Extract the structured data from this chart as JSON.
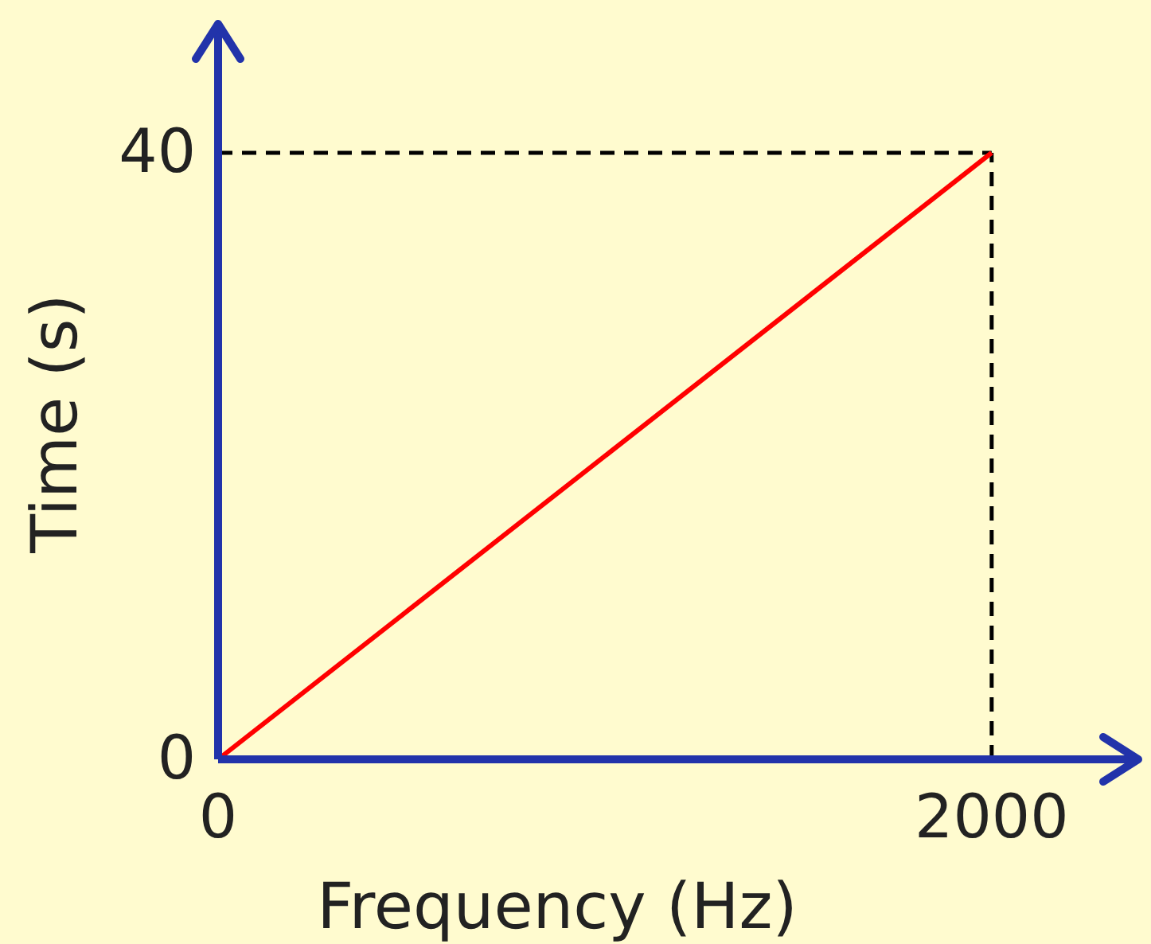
{
  "chart_data": {
    "type": "line",
    "xlabel": "Frequency (Hz)",
    "ylabel": "Time (s)",
    "x": [
      0,
      2000
    ],
    "series": [
      {
        "color": "#ff0000",
        "values": [
          0,
          40
        ]
      }
    ],
    "xlim": [
      0,
      2379
    ],
    "ylim": [
      0,
      48.5
    ],
    "xticks": [
      0,
      2000
    ],
    "yticks": [
      0,
      40
    ],
    "ref_lines": [
      {
        "axis": "y",
        "value": 40,
        "color": "#000000",
        "line_style": "dashed"
      },
      {
        "axis": "x",
        "value": 2000,
        "color": "#000000",
        "line_style": "dashed"
      }
    ],
    "marker": "none",
    "line_style": "solid",
    "grid": false
  }
}
